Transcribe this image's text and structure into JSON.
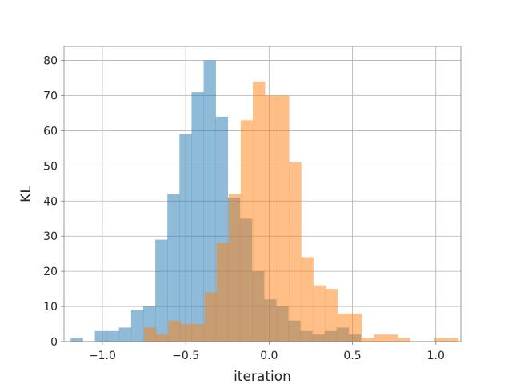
{
  "chart_data": {
    "type": "bar",
    "subtype": "overlapping-histogram",
    "xlabel": "iteration",
    "ylabel": "KL",
    "xlim": [
      -1.23,
      1.15
    ],
    "ylim": [
      0,
      84
    ],
    "x_ticks": [
      -1.0,
      -0.5,
      0.0,
      0.5,
      1.0
    ],
    "x_tick_labels": [
      "−1.0",
      "−0.5",
      "0.0",
      "0.5",
      "1.0"
    ],
    "y_ticks": [
      0,
      10,
      20,
      30,
      40,
      50,
      60,
      70,
      80
    ],
    "y_tick_labels": [
      "0",
      "10",
      "20",
      "30",
      "40",
      "50",
      "60",
      "70",
      "80"
    ],
    "grid": true,
    "legend": "none",
    "series": [
      {
        "color": "#1f77b4",
        "alpha": 0.5,
        "bin_start": -1.19,
        "bin_width": 0.0725,
        "counts": [
          1,
          0,
          3,
          3,
          4,
          9,
          10,
          29,
          42,
          59,
          71,
          80,
          64,
          41,
          35,
          20,
          12,
          10,
          6,
          3,
          2,
          3,
          4,
          2
        ]
      },
      {
        "color": "#ff7f0e",
        "alpha": 0.5,
        "bin_start": -0.75,
        "bin_width": 0.0725,
        "counts": [
          4,
          2,
          6,
          5,
          5,
          14,
          28,
          42,
          63,
          74,
          70,
          70,
          51,
          24,
          16,
          15,
          8,
          8,
          1,
          2,
          2,
          1,
          0,
          0,
          1,
          1
        ]
      }
    ]
  }
}
